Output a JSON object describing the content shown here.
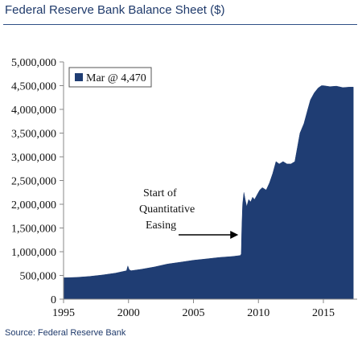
{
  "title": "Federal Reserve Bank Balance Sheet ($)",
  "source": "Source: Federal Reserve Bank",
  "colors": {
    "series": "#1f3d73",
    "axis": "#888888",
    "title": "#1f3a6b",
    "arrow": "#000000"
  },
  "chart_data": {
    "type": "area",
    "title": "Federal Reserve Bank Balance Sheet ($)",
    "xlabel": "",
    "ylabel": "",
    "xlim": [
      1995,
      2017.6
    ],
    "ylim": [
      0,
      5000000
    ],
    "x_ticks": [
      1995,
      2000,
      2005,
      2010,
      2015
    ],
    "y_ticks": [
      0,
      500000,
      1000000,
      1500000,
      2000000,
      2500000,
      3000000,
      3500000,
      4000000,
      4500000,
      5000000
    ],
    "y_tick_labels": [
      "0",
      "500,000",
      "1,000,000",
      "1,500,000",
      "2,000,000",
      "2,500,000",
      "3,000,000",
      "3,500,000",
      "4,000,000",
      "4,500,000",
      "5,000,000"
    ],
    "grid": false,
    "legend": {
      "position": "top-left",
      "entries": [
        "Mar @ 4,470"
      ]
    },
    "annotation": {
      "lines": [
        "Start of",
        "Quantitative",
        "Easing"
      ],
      "arrow_to": [
        2008.7,
        1350000
      ]
    },
    "series": [
      {
        "name": "Mar @ 4,470",
        "x": [
          1995,
          1996,
          1997,
          1998,
          1999,
          1999.85,
          1999.95,
          2000.05,
          2000.2,
          2001,
          2002,
          2003,
          2004,
          2005,
          2006,
          2007,
          2008,
          2008.6,
          2008.68,
          2008.72,
          2008.78,
          2008.88,
          2008.98,
          2009.1,
          2009.25,
          2009.4,
          2009.55,
          2009.7,
          2009.9,
          2010.1,
          2010.3,
          2010.6,
          2010.85,
          2011.1,
          2011.35,
          2011.6,
          2011.9,
          2012.2,
          2012.5,
          2012.8,
          2013,
          2013.2,
          2013.5,
          2013.8,
          2014,
          2014.3,
          2014.6,
          2014.85,
          2015,
          2015.5,
          2016,
          2016.5,
          2017,
          2017.3
        ],
        "values": [
          450000,
          460000,
          480000,
          510000,
          550000,
          600000,
          700000,
          620000,
          600000,
          630000,
          680000,
          740000,
          780000,
          820000,
          850000,
          880000,
          900000,
          920000,
          950000,
          1500000,
          2000000,
          2250000,
          2100000,
          1950000,
          2100000,
          2050000,
          2150000,
          2100000,
          2200000,
          2300000,
          2350000,
          2300000,
          2450000,
          2650000,
          2900000,
          2850000,
          2900000,
          2850000,
          2850000,
          2900000,
          3200000,
          3500000,
          3700000,
          4000000,
          4200000,
          4350000,
          4450000,
          4500000,
          4500000,
          4480000,
          4490000,
          4460000,
          4470000,
          4470000
        ]
      }
    ]
  }
}
